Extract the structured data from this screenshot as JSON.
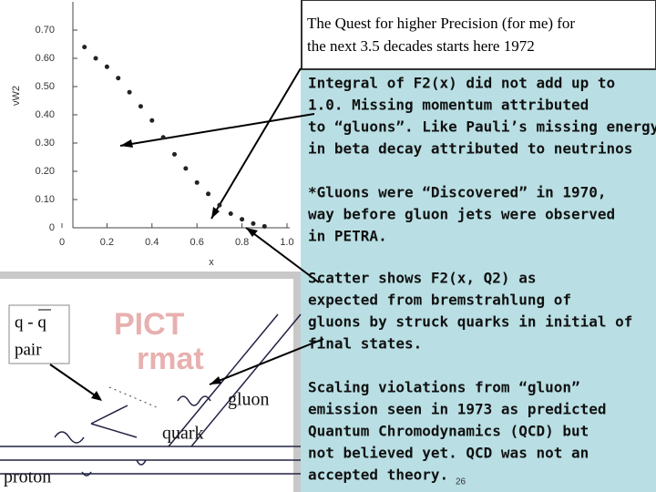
{
  "title": [
    "The Quest for higher Precision (for me) for",
    "the next 3.5 decades starts here 1972"
  ],
  "chart_data": {
    "type": "scatter",
    "y_label": "νW2",
    "x_label": "x",
    "x": [
      0.1,
      0.15,
      0.2,
      0.25,
      0.3,
      0.35,
      0.4,
      0.45,
      0.5,
      0.55,
      0.6,
      0.65,
      0.7,
      0.75,
      0.8,
      0.85,
      0.9
    ],
    "values": [
      0.64,
      0.6,
      0.57,
      0.53,
      0.48,
      0.43,
      0.38,
      0.32,
      0.26,
      0.21,
      0.16,
      0.12,
      0.08,
      0.05,
      0.03,
      0.015,
      0.005
    ],
    "color": "#222222",
    "xlim": [
      0,
      1.0
    ],
    "ylim": [
      0,
      0.8
    ],
    "xticks": [
      0,
      0.2,
      0.4,
      0.6,
      0.8,
      {
        "value": 1.0,
        "label": "1.0"
      }
    ],
    "yticks": [
      0,
      {
        "value": 0.1,
        "label": "0.10"
      },
      {
        "value": 0.2,
        "label": "0.20"
      },
      {
        "value": 0.3,
        "label": "0.30"
      },
      {
        "value": 0.4,
        "label": "0.40"
      },
      {
        "value": 0.5,
        "label": "0.50"
      },
      {
        "value": 0.6,
        "label": "0.60"
      },
      {
        "value": 0.7,
        "label": "0.70"
      }
    ]
  },
  "paragraphs": [
    [
      "Integral of F2(x) did not add up to",
      "1.0.   Missing momentum attributed",
      "to “gluons”. Like Pauli’s missing energy",
      "in beta decay attributed to neutrinos"
    ],
    [
      "*Gluons were “Discovered” in 1970,",
      "way before gluon jets were observed",
      "in PETRA."
    ],
    [
      " Scatter shows F2(x, Q2) as",
      "expected from bremstrahlung of",
      "gluons by struck quarks in initial of",
      "final states."
    ],
    [
      "Scaling violations from “gluon”",
      "emission seen in 1973 as predicted",
      "Quantum Chromodynamics (QCD) but",
      "not believed yet.  QCD was not  an",
      "accepted theory."
    ]
  ],
  "page_number": "26",
  "diagram": {
    "pair": [
      "q - q",
      "pair"
    ],
    "gluon": "gluon",
    "quark": "quark",
    "proton": "proton",
    "placeholder": [
      "PICT",
      "rmat"
    ]
  }
}
